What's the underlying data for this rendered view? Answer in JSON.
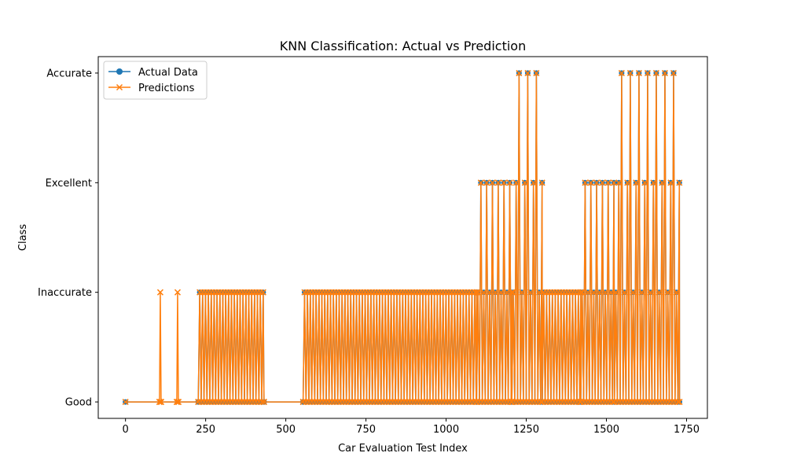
{
  "chart_data": {
    "type": "line",
    "title": "KNN Classification: Actual vs Prediction",
    "xlabel": "Car Evaluation Test Index",
    "ylabel": "Class",
    "xlim": [
      -85,
      1815
    ],
    "ylim": [
      -0.15,
      3.15
    ],
    "x_ticks": [
      0,
      250,
      500,
      750,
      1000,
      1250,
      1500,
      1750
    ],
    "y_categories": [
      "Good",
      "Inaccurate",
      "Excellent",
      "Accurate"
    ],
    "grid": false,
    "legend_position": "top-left",
    "series": [
      {
        "name": "Actual Data",
        "color": "#1f77b4",
        "marker": "circle",
        "segments": [
          {
            "range": [
              0,
              227
            ],
            "pattern": "constant",
            "levels": [
              0
            ]
          },
          {
            "range": [
              227,
              432
            ],
            "pattern": "alternate",
            "levels": [
              0,
              1
            ],
            "step": 9
          },
          {
            "range": [
              432,
              554
            ],
            "pattern": "constant",
            "levels": [
              0
            ]
          },
          {
            "range": [
              554,
              1095
            ],
            "pattern": "alternate",
            "levels": [
              0,
              1
            ],
            "step": 9
          },
          {
            "range": [
              1095,
              1205
            ],
            "pattern": "alternate",
            "levels": [
              0,
              1,
              2
            ],
            "step": 9
          },
          {
            "range": [
              1205,
              1300
            ],
            "pattern": "alternate",
            "levels": [
              0,
              1,
              2,
              3
            ],
            "step": 9
          },
          {
            "range": [
              1300,
              1420
            ],
            "pattern": "alternate",
            "levels": [
              0,
              1
            ],
            "step": 9
          },
          {
            "range": [
              1420,
              1525
            ],
            "pattern": "alternate",
            "levels": [
              0,
              1,
              2
            ],
            "step": 9
          },
          {
            "range": [
              1525,
              1728
            ],
            "pattern": "alternate",
            "levels": [
              0,
              1,
              2,
              3
            ],
            "step": 9
          }
        ]
      },
      {
        "name": "Predictions",
        "color": "#ff7f0e",
        "marker": "x",
        "segments": [
          {
            "range": [
              0,
              106
            ],
            "pattern": "constant",
            "levels": [
              0
            ]
          },
          {
            "range": [
              106,
              111
            ],
            "pattern": "spike",
            "levels": [
              0,
              1
            ]
          },
          {
            "range": [
              111,
              160
            ],
            "pattern": "constant",
            "levels": [
              0
            ]
          },
          {
            "range": [
              160,
              165
            ],
            "pattern": "spike",
            "levels": [
              0,
              1
            ]
          },
          {
            "range": [
              165,
              227
            ],
            "pattern": "constant",
            "levels": [
              0
            ]
          },
          {
            "range": [
              227,
              432
            ],
            "pattern": "alternate",
            "levels": [
              0,
              1
            ],
            "step": 9
          },
          {
            "range": [
              432,
              554
            ],
            "pattern": "constant",
            "levels": [
              0
            ]
          },
          {
            "range": [
              554,
              1095
            ],
            "pattern": "alternate",
            "levels": [
              0,
              1
            ],
            "step": 9
          },
          {
            "range": [
              1095,
              1205
            ],
            "pattern": "alternate",
            "levels": [
              0,
              1,
              2
            ],
            "step": 9
          },
          {
            "range": [
              1205,
              1300
            ],
            "pattern": "alternate",
            "levels": [
              0,
              1,
              2,
              3
            ],
            "step": 9
          },
          {
            "range": [
              1300,
              1420
            ],
            "pattern": "alternate",
            "levels": [
              0,
              1
            ],
            "step": 9
          },
          {
            "range": [
              1420,
              1525
            ],
            "pattern": "alternate",
            "levels": [
              0,
              1,
              2
            ],
            "step": 9
          },
          {
            "range": [
              1525,
              1728
            ],
            "pattern": "alternate",
            "levels": [
              0,
              1,
              2,
              3
            ],
            "step": 9
          }
        ]
      }
    ]
  }
}
